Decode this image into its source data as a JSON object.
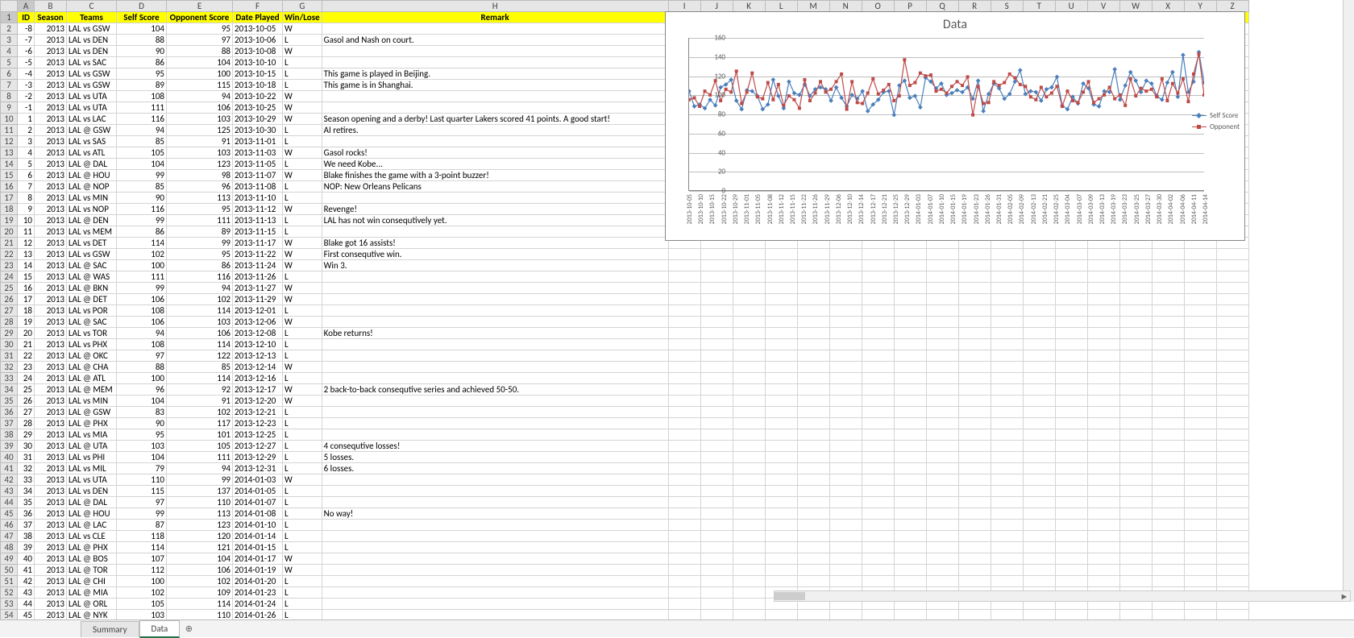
{
  "sheet_tabs": {
    "tabs": [
      "Summary",
      "Data"
    ],
    "active": 1,
    "add_icon": "⊕"
  },
  "columns": [
    "A",
    "B",
    "C",
    "D",
    "E",
    "F",
    "G",
    "H",
    "I",
    "J",
    "K",
    "L",
    "M",
    "N",
    "O",
    "P",
    "Q",
    "R",
    "S",
    "T",
    "U",
    "V",
    "W",
    "X",
    "Y",
    "Z"
  ],
  "headers": {
    "A": "ID",
    "B": "Season",
    "C": "Teams",
    "D": "Self Score",
    "E": "Opponent Score",
    "F": "Date Played",
    "G": "Win/Lose",
    "H": "Remark"
  },
  "rows": [
    {
      "id": -8,
      "season": 2013,
      "teams": "LAL vs GSW",
      "self": 104,
      "opp": 95,
      "date": "2013-10-05",
      "wl": "W",
      "rem": ""
    },
    {
      "id": -7,
      "season": 2013,
      "teams": "LAL vs DEN",
      "self": 88,
      "opp": 97,
      "date": "2013-10-06",
      "wl": "L",
      "rem": "Gasol and Nash on court."
    },
    {
      "id": -6,
      "season": 2013,
      "teams": "LAL vs DEN",
      "self": 90,
      "opp": 88,
      "date": "2013-10-08",
      "wl": "W",
      "rem": ""
    },
    {
      "id": -5,
      "season": 2013,
      "teams": "LAL vs SAC",
      "self": 86,
      "opp": 104,
      "date": "2013-10-10",
      "wl": "L",
      "rem": ""
    },
    {
      "id": -4,
      "season": 2013,
      "teams": "LAL vs GSW",
      "self": 95,
      "opp": 100,
      "date": "2013-10-15",
      "wl": "L",
      "rem": "This game is played in Beijing."
    },
    {
      "id": -3,
      "season": 2013,
      "teams": "LAL vs GSW",
      "self": 89,
      "opp": 115,
      "date": "2013-10-18",
      "wl": "L",
      "rem": "This game is in Shanghai."
    },
    {
      "id": -2,
      "season": 2013,
      "teams": "LAL vs UTA",
      "self": 108,
      "opp": 94,
      "date": "2013-10-22",
      "wl": "W",
      "rem": ""
    },
    {
      "id": -1,
      "season": 2013,
      "teams": "LAL vs UTA",
      "self": 111,
      "opp": 106,
      "date": "2013-10-25",
      "wl": "W",
      "rem": ""
    },
    {
      "id": 1,
      "season": 2013,
      "teams": "LAL vs LAC",
      "self": 116,
      "opp": 103,
      "date": "2013-10-29",
      "wl": "W",
      "rem": "Season opening and a derby! Last quarter Lakers scored 41 points. A good start!"
    },
    {
      "id": 2,
      "season": 2013,
      "teams": "LAL @ GSW",
      "self": 94,
      "opp": 125,
      "date": "2013-10-30",
      "wl": "L",
      "rem": "AI retires."
    },
    {
      "id": 3,
      "season": 2013,
      "teams": "LAL vs SAS",
      "self": 85,
      "opp": 91,
      "date": "2013-11-01",
      "wl": "L",
      "rem": ""
    },
    {
      "id": 4,
      "season": 2013,
      "teams": "LAL vs ATL",
      "self": 105,
      "opp": 103,
      "date": "2013-11-03",
      "wl": "W",
      "rem": "Gasol rocks!"
    },
    {
      "id": 5,
      "season": 2013,
      "teams": "LAL @ DAL",
      "self": 104,
      "opp": 123,
      "date": "2013-11-05",
      "wl": "L",
      "rem": "We need Kobe..."
    },
    {
      "id": 6,
      "season": 2013,
      "teams": "LAL @ HOU",
      "self": 99,
      "opp": 98,
      "date": "2013-11-07",
      "wl": "W",
      "rem": "Blake finishes the game with a 3-point buzzer!"
    },
    {
      "id": 7,
      "season": 2013,
      "teams": "LAL @ NOP",
      "self": 85,
      "opp": 96,
      "date": "2013-11-08",
      "wl": "L",
      "rem": "NOP: New Orleans Pelicans"
    },
    {
      "id": 8,
      "season": 2013,
      "teams": "LAL vs MIN",
      "self": 90,
      "opp": 113,
      "date": "2013-11-10",
      "wl": "L",
      "rem": ""
    },
    {
      "id": 9,
      "season": 2013,
      "teams": "LAL vs NOP",
      "self": 116,
      "opp": 95,
      "date": "2013-11-12",
      "wl": "W",
      "rem": "Revenge!"
    },
    {
      "id": 10,
      "season": 2013,
      "teams": "LAL @ DEN",
      "self": 99,
      "opp": 111,
      "date": "2013-11-13",
      "wl": "L",
      "rem": "LAL has not win consequtively yet."
    },
    {
      "id": 11,
      "season": 2013,
      "teams": "LAL vs MEM",
      "self": 86,
      "opp": 89,
      "date": "2013-11-15",
      "wl": "L",
      "rem": ""
    },
    {
      "id": 12,
      "season": 2013,
      "teams": "LAL vs DET",
      "self": 114,
      "opp": 99,
      "date": "2013-11-17",
      "wl": "W",
      "rem": "Blake got 16 assists!"
    },
    {
      "id": 13,
      "season": 2013,
      "teams": "LAL vs GSW",
      "self": 102,
      "opp": 95,
      "date": "2013-11-22",
      "wl": "W",
      "rem": "First consequtive win."
    },
    {
      "id": 14,
      "season": 2013,
      "teams": "LAL @ SAC",
      "self": 100,
      "opp": 86,
      "date": "2013-11-24",
      "wl": "W",
      "rem": "Win 3."
    },
    {
      "id": 15,
      "season": 2013,
      "teams": "LAL @ WAS",
      "self": 111,
      "opp": 116,
      "date": "2013-11-26",
      "wl": "L",
      "rem": ""
    },
    {
      "id": 16,
      "season": 2013,
      "teams": "LAL @ BKN",
      "self": 99,
      "opp": 94,
      "date": "2013-11-27",
      "wl": "W",
      "rem": ""
    },
    {
      "id": 17,
      "season": 2013,
      "teams": "LAL @ DET",
      "self": 106,
      "opp": 102,
      "date": "2013-11-29",
      "wl": "W",
      "rem": ""
    },
    {
      "id": 18,
      "season": 2013,
      "teams": "LAL vs POR",
      "self": 108,
      "opp": 114,
      "date": "2013-12-01",
      "wl": "L",
      "rem": ""
    },
    {
      "id": 19,
      "season": 2013,
      "teams": "LAL @ SAC",
      "self": 106,
      "opp": 103,
      "date": "2013-12-06",
      "wl": "W",
      "rem": ""
    },
    {
      "id": 20,
      "season": 2013,
      "teams": "LAL vs TOR",
      "self": 94,
      "opp": 106,
      "date": "2013-12-08",
      "wl": "L",
      "rem": "Kobe returns!"
    },
    {
      "id": 21,
      "season": 2013,
      "teams": "LAL vs PHX",
      "self": 108,
      "opp": 114,
      "date": "2013-12-10",
      "wl": "L",
      "rem": ""
    },
    {
      "id": 22,
      "season": 2013,
      "teams": "LAL @ OKC",
      "self": 97,
      "opp": 122,
      "date": "2013-12-13",
      "wl": "L",
      "rem": ""
    },
    {
      "id": 23,
      "season": 2013,
      "teams": "LAL @ CHA",
      "self": 88,
      "opp": 85,
      "date": "2013-12-14",
      "wl": "W",
      "rem": ""
    },
    {
      "id": 24,
      "season": 2013,
      "teams": "LAL @ ATL",
      "self": 100,
      "opp": 114,
      "date": "2013-12-16",
      "wl": "L",
      "rem": ""
    },
    {
      "id": 25,
      "season": 2013,
      "teams": "LAL @ MEM",
      "self": 96,
      "opp": 92,
      "date": "2013-12-17",
      "wl": "W",
      "rem": "2 back-to-back consequtive series and achieved 50-50."
    },
    {
      "id": 26,
      "season": 2013,
      "teams": "LAL vs MIN",
      "self": 104,
      "opp": 91,
      "date": "2013-12-20",
      "wl": "W",
      "rem": ""
    },
    {
      "id": 27,
      "season": 2013,
      "teams": "LAL @ GSW",
      "self": 83,
      "opp": 102,
      "date": "2013-12-21",
      "wl": "L",
      "rem": ""
    },
    {
      "id": 28,
      "season": 2013,
      "teams": "LAL @ PHX",
      "self": 90,
      "opp": 117,
      "date": "2013-12-23",
      "wl": "L",
      "rem": ""
    },
    {
      "id": 29,
      "season": 2013,
      "teams": "LAL vs MIA",
      "self": 95,
      "opp": 101,
      "date": "2013-12-25",
      "wl": "L",
      "rem": ""
    },
    {
      "id": 30,
      "season": 2013,
      "teams": "LAL @ UTA",
      "self": 103,
      "opp": 105,
      "date": "2013-12-27",
      "wl": "L",
      "rem": "4 consequtive losses!"
    },
    {
      "id": 31,
      "season": 2013,
      "teams": "LAL vs PHI",
      "self": 104,
      "opp": 111,
      "date": "2013-12-29",
      "wl": "L",
      "rem": "5 losses."
    },
    {
      "id": 32,
      "season": 2013,
      "teams": "LAL vs MIL",
      "self": 79,
      "opp": 94,
      "date": "2013-12-31",
      "wl": "L",
      "rem": "6 losses."
    },
    {
      "id": 33,
      "season": 2013,
      "teams": "LAL vs UTA",
      "self": 110,
      "opp": 99,
      "date": "2014-01-03",
      "wl": "W",
      "rem": ""
    },
    {
      "id": 34,
      "season": 2013,
      "teams": "LAL vs DEN",
      "self": 115,
      "opp": 137,
      "date": "2014-01-05",
      "wl": "L",
      "rem": ""
    },
    {
      "id": 35,
      "season": 2013,
      "teams": "LAL @ DAL",
      "self": 97,
      "opp": 110,
      "date": "2014-01-07",
      "wl": "L",
      "rem": ""
    },
    {
      "id": 36,
      "season": 2013,
      "teams": "LAL @ HOU",
      "self": 99,
      "opp": 113,
      "date": "2014-01-08",
      "wl": "L",
      "rem": "No way!"
    },
    {
      "id": 37,
      "season": 2013,
      "teams": "LAL @ LAC",
      "self": 87,
      "opp": 123,
      "date": "2014-01-10",
      "wl": "L",
      "rem": ""
    },
    {
      "id": 38,
      "season": 2013,
      "teams": "LAL vs CLE",
      "self": 118,
      "opp": 120,
      "date": "2014-01-14",
      "wl": "L",
      "rem": ""
    },
    {
      "id": 39,
      "season": 2013,
      "teams": "LAL @ PHX",
      "self": 114,
      "opp": 121,
      "date": "2014-01-15",
      "wl": "L",
      "rem": ""
    },
    {
      "id": 40,
      "season": 2013,
      "teams": "LAL @ BOS",
      "self": 107,
      "opp": 104,
      "date": "2014-01-17",
      "wl": "W",
      "rem": ""
    },
    {
      "id": 41,
      "season": 2013,
      "teams": "LAL @ TOR",
      "self": 112,
      "opp": 106,
      "date": "2014-01-19",
      "wl": "W",
      "rem": ""
    },
    {
      "id": 42,
      "season": 2013,
      "teams": "LAL @ CHI",
      "self": 100,
      "opp": 102,
      "date": "2014-01-20",
      "wl": "L",
      "rem": ""
    },
    {
      "id": 43,
      "season": 2013,
      "teams": "LAL @ MIA",
      "self": 102,
      "opp": 109,
      "date": "2014-01-23",
      "wl": "L",
      "rem": ""
    },
    {
      "id": 44,
      "season": 2013,
      "teams": "LAL @ ORL",
      "self": 105,
      "opp": 114,
      "date": "2014-01-24",
      "wl": "L",
      "rem": ""
    },
    {
      "id": 45,
      "season": 2013,
      "teams": "LAL @ NYK",
      "self": 103,
      "opp": 110,
      "date": "2014-01-26",
      "wl": "L",
      "rem": ""
    }
  ],
  "chart": {
    "title": "Data",
    "type": "line",
    "ylim": [
      0,
      160
    ],
    "ytick_step": 20,
    "x_labels": [
      "2013-10-05",
      "2013-10-10",
      "2013-10-15",
      "2013-10-22",
      "2013-10-29",
      "2013-11-01",
      "2013-11-05",
      "2013-11-08",
      "2013-11-12",
      "2013-11-15",
      "2013-11-22",
      "2013-11-26",
      "2013-11-29",
      "2013-12-06",
      "2013-12-10",
      "2013-12-14",
      "2013-12-17",
      "2013-12-21",
      "2013-12-25",
      "2013-12-29",
      "2014-01-03",
      "2014-01-07",
      "2014-01-10",
      "2014-01-15",
      "2014-01-19",
      "2014-01-23",
      "2014-01-26",
      "2014-01-31",
      "2014-02-05",
      "2014-02-09",
      "2014-02-13",
      "2014-02-21",
      "2014-02-25",
      "2014-03-04",
      "2014-03-07",
      "2014-03-09",
      "2014-03-13",
      "2014-03-19",
      "2014-03-23",
      "2014-03-25",
      "2014-03-27",
      "2014-03-30",
      "2014-04-02",
      "2014-04-06",
      "2014-04-11",
      "2014-04-14"
    ],
    "series": [
      {
        "name": "Self Score",
        "color": "#4a7ebb",
        "marker": "diamond"
      },
      {
        "name": "Opponent",
        "color": "#be4b48",
        "marker": "square"
      }
    ],
    "legend": [
      "Self Score",
      "Opponent"
    ],
    "background": "#ffffff",
    "grid_color": "#bfbfbf",
    "self_values": [
      104,
      88,
      90,
      86,
      95,
      89,
      108,
      111,
      116,
      94,
      85,
      105,
      104,
      99,
      85,
      90,
      116,
      99,
      86,
      114,
      102,
      100,
      111,
      99,
      106,
      108,
      106,
      94,
      108,
      97,
      88,
      100,
      96,
      104,
      83,
      90,
      95,
      103,
      104,
      79,
      110,
      115,
      97,
      99,
      87,
      118,
      114,
      107,
      112,
      100,
      102,
      105,
      103,
      108,
      96,
      115,
      83,
      101,
      112,
      107,
      96,
      101,
      114,
      126,
      101,
      104,
      103,
      94,
      106,
      108,
      119,
      89,
      85,
      98,
      91,
      112,
      107,
      90,
      88,
      104,
      103,
      127,
      95,
      110,
      124,
      115,
      103,
      115,
      112,
      99,
      95,
      113,
      124,
      98,
      142,
      103,
      114,
      145,
      113
    ],
    "opp_values": [
      95,
      97,
      88,
      104,
      100,
      115,
      94,
      106,
      103,
      125,
      91,
      103,
      123,
      98,
      96,
      113,
      95,
      111,
      89,
      99,
      95,
      86,
      116,
      94,
      102,
      114,
      103,
      106,
      114,
      122,
      85,
      114,
      92,
      91,
      102,
      117,
      101,
      105,
      111,
      94,
      99,
      137,
      110,
      113,
      123,
      120,
      121,
      104,
      106,
      102,
      109,
      114,
      110,
      119,
      79,
      109,
      91,
      92,
      114,
      110,
      113,
      122,
      118,
      111,
      109,
      98,
      95,
      108,
      98,
      102,
      109,
      88,
      104,
      94,
      92,
      103,
      114,
      92,
      96,
      100,
      108,
      96,
      100,
      89,
      117,
      99,
      107,
      104,
      106,
      98,
      117,
      94,
      112,
      102,
      117,
      93,
      122,
      143,
      100
    ]
  }
}
